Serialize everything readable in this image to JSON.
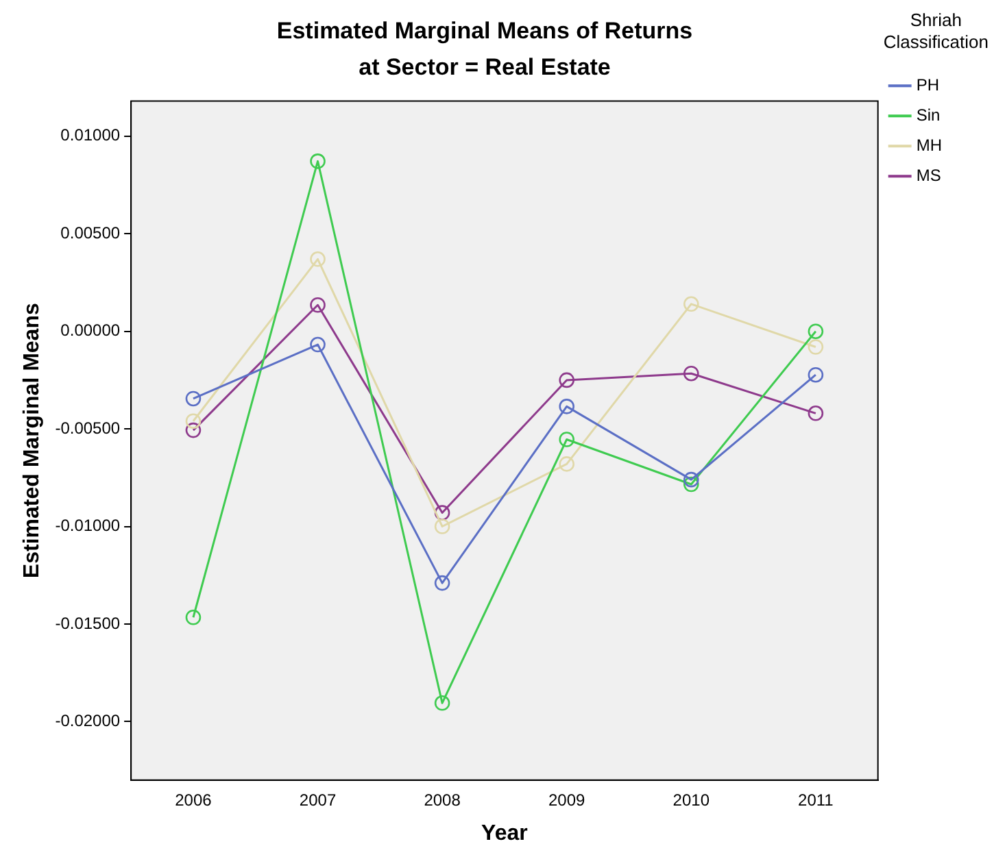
{
  "chart_data": {
    "type": "line",
    "title": "Estimated Marginal Means of Returns",
    "subtitle": "at Sector = Real Estate",
    "xlabel": "Year",
    "ylabel": "Estimated Marginal Means",
    "legend_title": "Shriah Classification",
    "legend": "right",
    "marker": "circle",
    "grid": false,
    "categories": [
      "2006",
      "2007",
      "2008",
      "2009",
      "2010",
      "2011"
    ],
    "ylim": [
      -0.023,
      0.0118
    ],
    "yticks": [
      {
        "value": -0.02,
        "label": "-0.02000"
      },
      {
        "value": -0.015,
        "label": "-0.01500"
      },
      {
        "value": -0.01,
        "label": "-0.01000"
      },
      {
        "value": -0.005,
        "label": "-0.00500"
      },
      {
        "value": 0,
        "label": "0.00000"
      },
      {
        "value": 0.005,
        "label": "0.00500"
      },
      {
        "value": 0.01,
        "label": "0.01000"
      }
    ],
    "series": [
      {
        "name": "PH",
        "color": "#5b6fc5",
        "values": [
          -0.00345,
          -0.00068,
          -0.0129,
          -0.00385,
          -0.0076,
          -0.00223
        ]
      },
      {
        "name": "Sin",
        "color": "#3fcb50",
        "values": [
          -0.01466,
          0.00872,
          -0.01905,
          -0.00554,
          -0.00784,
          0.0
        ]
      },
      {
        "name": "MH",
        "color": "#e0d8a8",
        "values": [
          -0.0046,
          0.0037,
          -0.01,
          -0.0068,
          0.0014,
          -0.0008
        ]
      },
      {
        "name": "MS",
        "color": "#8e3a8c",
        "values": [
          -0.00507,
          0.00135,
          -0.0093,
          -0.0025,
          -0.00216,
          -0.0042
        ]
      }
    ]
  }
}
